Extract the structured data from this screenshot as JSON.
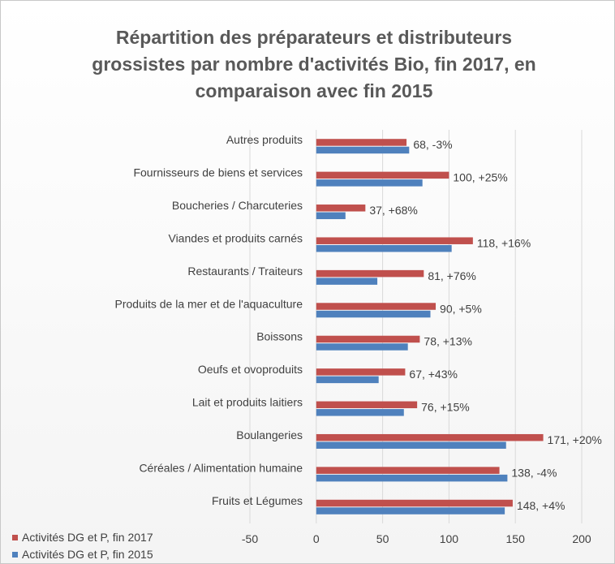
{
  "chart_data": {
    "type": "bar",
    "orientation": "horizontal",
    "title": "Répartition des préparateurs et distributeurs grossistes par nombre d'activités Bio, fin 2017, en comparaison avec fin 2015",
    "title_lines": [
      "Répartition des préparateurs et distributeurs",
      "grossistes par nombre d'activités Bio, fin 2017, en",
      "comparaison avec fin 2015"
    ],
    "categories": [
      "Autres produits",
      "Fournisseurs de biens et services",
      "Boucheries / Charcuteries",
      "Viandes et produits carnés",
      "Restaurants / Traiteurs",
      "Produits de la mer et de l'aquaculture",
      "Boissons",
      "Oeufs et ovoproduits",
      "Lait et produits laitiers",
      "Boulangeries",
      "Céréales / Alimentation humaine",
      "Fruits et Légumes"
    ],
    "series": [
      {
        "name": "Activités DG et P, fin 2017",
        "color": "#c0504d",
        "values": [
          68,
          100,
          37,
          118,
          81,
          90,
          78,
          67,
          76,
          171,
          138,
          148
        ],
        "labels": [
          "68, -3%",
          "100, +25%",
          "37, +68%",
          "118, +16%",
          "81, +76%",
          "90, +5%",
          "78, +13%",
          "67, +43%",
          "76, +15%",
          "171, +20%",
          "138, -4%",
          "148, +4%"
        ]
      },
      {
        "name": "Activités DG et P, fin 2015",
        "color": "#4f81bd",
        "values": [
          70,
          80,
          22,
          102,
          46,
          86,
          69,
          47,
          66,
          143,
          144,
          142
        ]
      }
    ],
    "xlim": [
      -50,
      200
    ],
    "xticks": [
      "-50",
      "0",
      "50",
      "100",
      "150",
      "200"
    ],
    "xlabel": "",
    "ylabel": "",
    "grid": true,
    "legend_position": "bottom-left"
  }
}
